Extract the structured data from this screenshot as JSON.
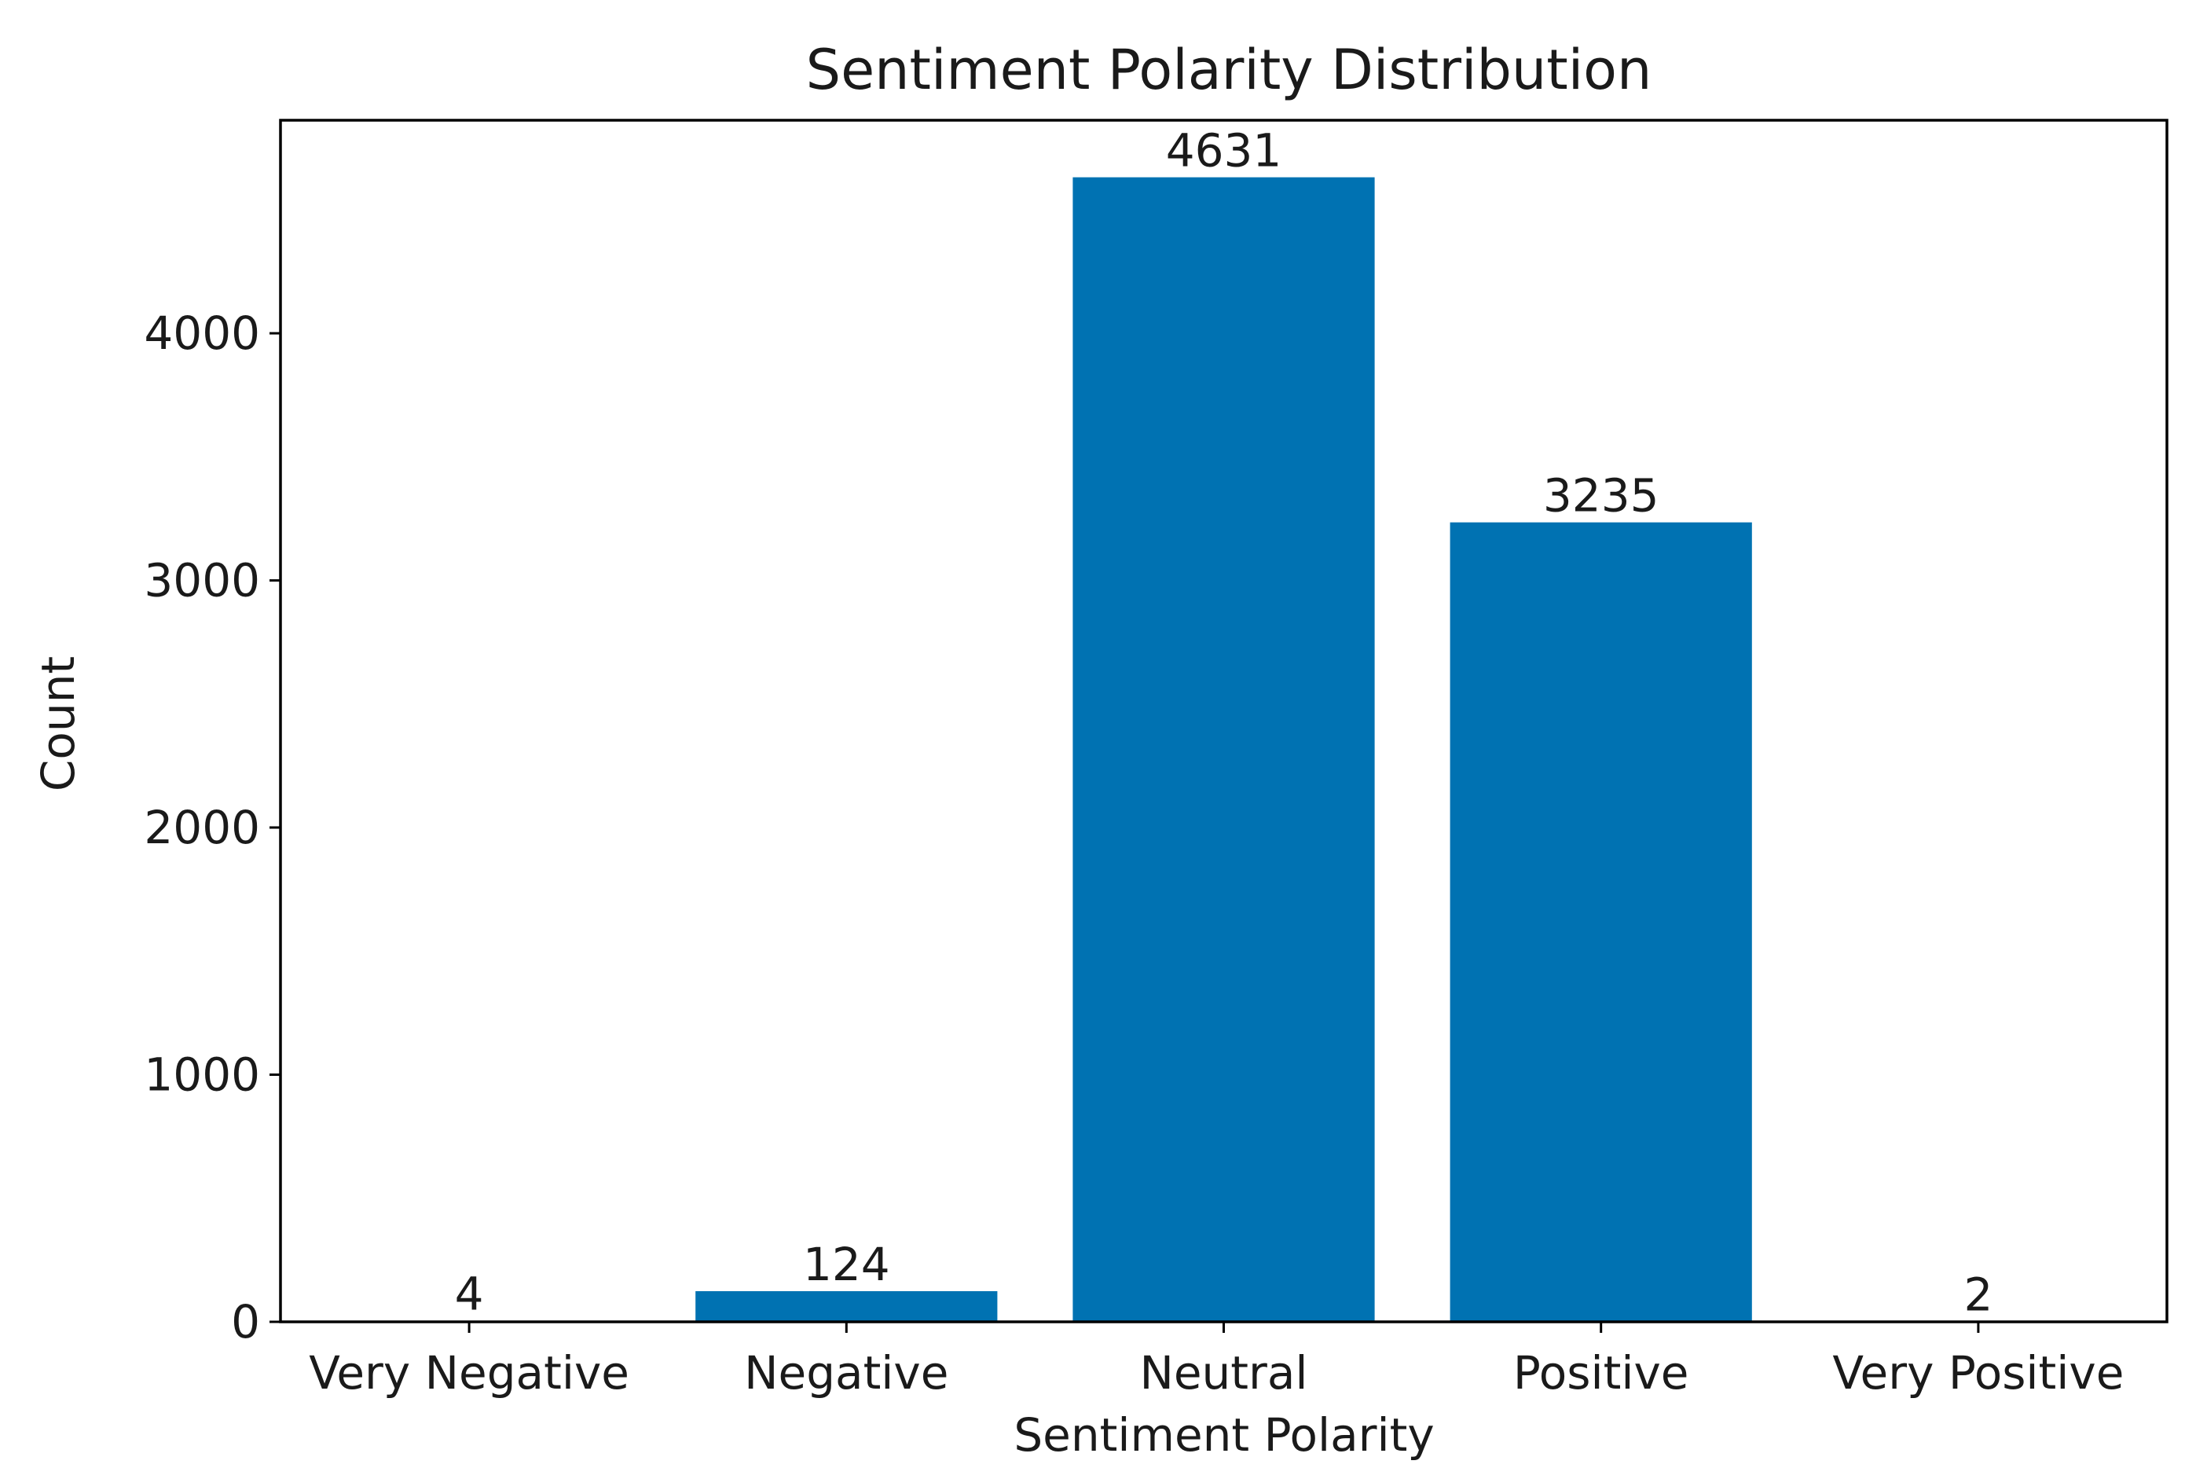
{
  "chart_data": {
    "type": "bar",
    "title": "Sentiment Polarity Distribution",
    "xlabel": "Sentiment Polarity",
    "ylabel": "Count",
    "categories": [
      "Very Negative",
      "Negative",
      "Neutral",
      "Positive",
      "Very Positive"
    ],
    "values": [
      4,
      124,
      4631,
      3235,
      2
    ],
    "data_labels": [
      "4",
      "124",
      "4631",
      "3235",
      "2"
    ],
    "yticks": [
      0,
      1000,
      2000,
      3000,
      4000
    ],
    "ytick_labels": [
      "0",
      "1000",
      "2000",
      "3000",
      "4000"
    ],
    "ylim": [
      0,
      4862
    ],
    "grid": false,
    "bar_color": "#0072b2"
  }
}
